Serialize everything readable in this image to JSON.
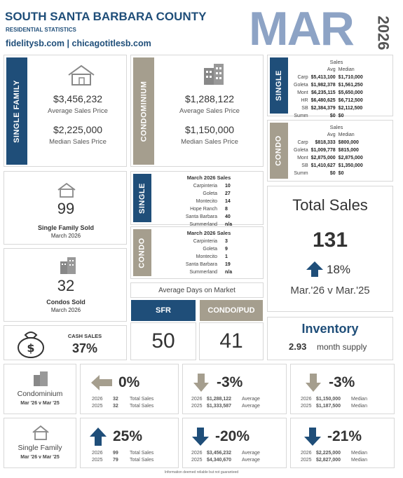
{
  "header": {
    "county": "SOUTH SANTA BARBARA COUNTY",
    "subtitle": "RESIDENTIAL STATISTICS",
    "links": "fidelitysb.com | chicagotitlesb.com",
    "month": "MAR",
    "year": "2026"
  },
  "single_family": {
    "bar": "SINGLE FAMILY",
    "avg_value": "$3,456,232",
    "avg_label": "Average Sales Price",
    "med_value": "$2,225,000",
    "med_label": "Median Sales Price"
  },
  "condominium": {
    "bar": "CONDOMINIUM",
    "avg_value": "$1,288,122",
    "avg_label": "Average Sales Price",
    "med_value": "$1,150,000",
    "med_label": "Median Sales Price"
  },
  "single_table": {
    "bar": "SINGLE",
    "title": "Sales",
    "col_avg": "Avg",
    "col_med": "Median",
    "rows": [
      [
        "Carp",
        "$5,413,100",
        "$1,710,000"
      ],
      [
        "Goleta",
        "$1,982,378",
        "$1,561,250"
      ],
      [
        "Mont",
        "$6,235,115",
        "$5,650,000"
      ],
      [
        "HR",
        "$6,480,625",
        "$6,712,500"
      ],
      [
        "SB",
        "$2,384,379",
        "$2,112,500"
      ],
      [
        "Summ",
        "$0",
        "$0"
      ]
    ]
  },
  "condo_table": {
    "bar": "CONDO",
    "title": "Sales",
    "col_avg": "Avg",
    "col_med": "Median",
    "rows": [
      [
        "Carp",
        "$818,333",
        "$800,000"
      ],
      [
        "Goleta",
        "$1,009,778",
        "$815,000"
      ],
      [
        "Mont",
        "$2,875,000",
        "$2,875,000"
      ],
      [
        "SB",
        "$1,410,627",
        "$1,350,000"
      ],
      [
        "Summ",
        "$0",
        "$0"
      ]
    ]
  },
  "sf_sold": {
    "count": "99",
    "label": "Single Family Sold",
    "date": "March 2026"
  },
  "condos_sold": {
    "count": "32",
    "label": "Condos Sold",
    "date": "March 2026"
  },
  "cash": {
    "label": "CASH SALES",
    "value": "37%"
  },
  "single_sales": {
    "bar": "SINGLE",
    "title": "March 2026 Sales",
    "rows": [
      [
        "Carpinteria",
        "10"
      ],
      [
        "Goleta",
        "27"
      ],
      [
        "Montecito",
        "14"
      ],
      [
        "Hope Ranch",
        "8"
      ],
      [
        "Santa Barbara",
        "40"
      ],
      [
        "Summerland",
        "n/a"
      ]
    ]
  },
  "condo_sales": {
    "bar": "CONDO",
    "title": "March 2026 Sales",
    "rows": [
      [
        "Carpinteria",
        "3"
      ],
      [
        "Goleta",
        "9"
      ],
      [
        "Montecito",
        "1"
      ],
      [
        "Santa Barbara",
        "19"
      ],
      [
        "Summerland",
        "n/a"
      ]
    ]
  },
  "dom": {
    "title": "Average Days on Market",
    "sfr_label": "SFR",
    "sfr_value": "50",
    "condo_label": "CONDO/PUD",
    "condo_value": "41"
  },
  "total_sales": {
    "title": "Total Sales",
    "value": "131",
    "pct": "18%",
    "compare": "Mar.'26 v Mar.'25"
  },
  "inventory": {
    "title": "Inventory",
    "value": "2.93",
    "suffix": "month supply"
  },
  "condo_cmp": {
    "name": "Condominium",
    "period": "Mar '26 v Mar '25",
    "total": {
      "pct": "0%",
      "y1": "2026",
      "v1": "32",
      "l1": "Total Sales",
      "y2": "2025",
      "v2": "32",
      "l2": "Total Sales"
    },
    "avg": {
      "pct": "-3%",
      "y1": "2026",
      "v1": "$1,288,122",
      "l1": "Average",
      "y2": "2025",
      "v2": "$1,333,587",
      "l2": "Average"
    },
    "med": {
      "pct": "-3%",
      "y1": "2026",
      "v1": "$1,150,000",
      "l1": "Median",
      "y2": "2025",
      "v2": "$1,187,500",
      "l2": "Median"
    }
  },
  "sf_cmp": {
    "name": "Single Family",
    "period": "Mar '26 v Mar '25",
    "total": {
      "pct": "25%",
      "y1": "2026",
      "v1": "99",
      "l1": "Total Sales",
      "y2": "2025",
      "v2": "79",
      "l2": "Total Sales"
    },
    "avg": {
      "pct": "-20%",
      "y1": "2026",
      "v1": "$3,456,232",
      "l1": "Average",
      "y2": "2025",
      "v2": "$4,340,670",
      "l2": "Average"
    },
    "med": {
      "pct": "-21%",
      "y1": "2026",
      "v1": "$2,225,000",
      "l1": "Median",
      "y2": "2025",
      "v2": "$2,827,000",
      "l2": "Median"
    }
  },
  "footer": "Information deemed reliable but not guaranteed",
  "colors": {
    "navy": "#1f4e79",
    "tan": "#a59e8e",
    "month": "#8da3c5"
  }
}
